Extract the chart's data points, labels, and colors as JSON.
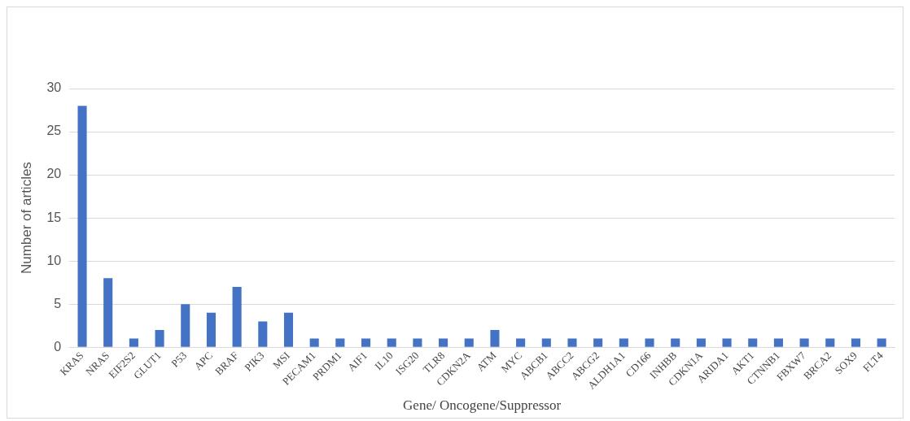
{
  "chart_data": {
    "type": "bar",
    "xlabel": "Gene/ Oncogene/Suppressor",
    "ylabel": "Number of articles",
    "categories": [
      "KRAS",
      "NRAS",
      "EIF2S2",
      "GLUT1",
      "P53",
      "APC",
      "BRAF",
      "PIK3",
      "MSI",
      "PECAM1",
      "PRDM1",
      "AIF1",
      "IL10",
      "ISG20",
      "TLR8",
      "CDKN2A",
      "ATM",
      "MYC",
      "ABCB1",
      "ABCC2",
      "ABCG2",
      "ALDH1A1",
      "CD166",
      "INHBB",
      "CDKN1A",
      "ARIDA1",
      "AKT1",
      "CTNNB1",
      "FBXW7",
      "BRCA2",
      "SOX9",
      "FLT4"
    ],
    "values": [
      28,
      8,
      1,
      2,
      5,
      4,
      7,
      3,
      4,
      1,
      1,
      1,
      1,
      1,
      1,
      1,
      2,
      1,
      1,
      1,
      1,
      1,
      1,
      1,
      1,
      1,
      1,
      1,
      1,
      1,
      1,
      1
    ],
    "color": "#4472c4",
    "ylim": [
      0,
      30
    ],
    "yticks": [
      0,
      5,
      10,
      15,
      20,
      25,
      30
    ],
    "grid": "y",
    "legend": false
  }
}
